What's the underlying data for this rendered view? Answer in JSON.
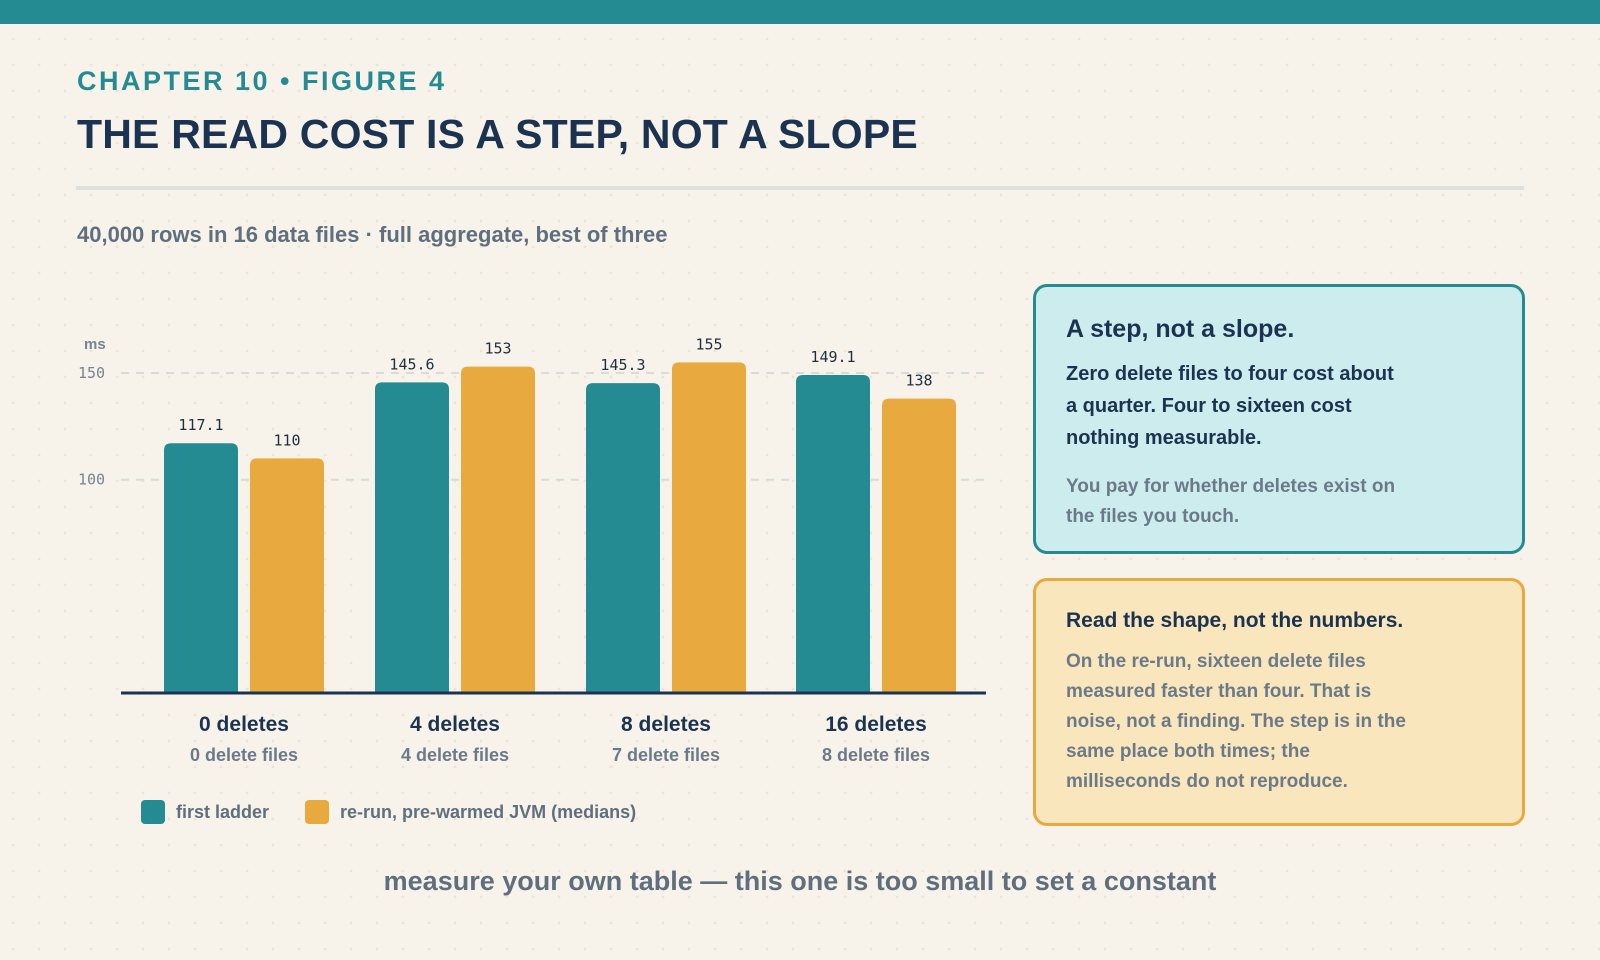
{
  "header": {
    "kicker": "CHAPTER 10 • FIGURE 4",
    "title": "THE READ COST IS A STEP, NOT A SLOPE",
    "subtitle": "40,000 rows in 16 data files · full aggregate, best of three"
  },
  "chart_data": {
    "type": "bar",
    "ylabel": "ms",
    "ylim": [
      0,
      150
    ],
    "yticks": [
      100,
      150
    ],
    "grid": true,
    "categories": [
      "0 deletes",
      "4 deletes",
      "8 deletes",
      "16 deletes"
    ],
    "category_sublabels": [
      "0 delete files",
      "4 delete files",
      "7 delete files",
      "8 delete files"
    ],
    "series": [
      {
        "name": "first ladder",
        "values": [
          117.1,
          145.6,
          145.3,
          149.1
        ],
        "labels": [
          "117.1",
          "145.6",
          "145.3",
          "149.1"
        ],
        "color": "#258b93"
      },
      {
        "name": "re-run, pre-warmed JVM (medians)",
        "values": [
          110,
          153,
          155,
          138
        ],
        "labels": [
          "110",
          "153",
          "155",
          "138"
        ],
        "color": "#e8aa3e"
      }
    ],
    "legend_position": "bottom-left"
  },
  "callouts": {
    "step": {
      "title": "A step, not a slope.",
      "body": "Zero delete files to four cost about a quarter. Four to sixteen cost nothing measurable.",
      "note": "You pay for whether deletes exist on the files you touch."
    },
    "shape": {
      "title": "Read the shape, not the numbers.",
      "note": "On the re-run, sixteen delete files measured faster than four. That is noise, not a finding. The step is in the same place both times; the milliseconds do not reproduce."
    }
  },
  "footer": "measure your own table — this one is too small to set a constant",
  "colors": {
    "accent_teal": "#258b93",
    "accent_amber": "#e8aa3e",
    "title_navy": "#1b3350",
    "background": "#f7f3ea"
  }
}
